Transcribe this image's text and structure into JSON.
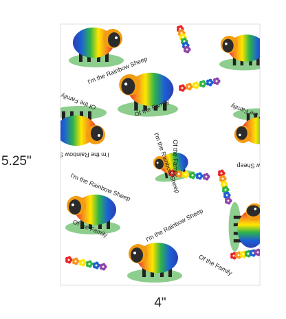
{
  "sheet": {
    "dimensions": {
      "height": "5.25\"",
      "width": "4\""
    },
    "prints": [
      {
        "text": "I'm the Rainbow Sheep"
      },
      {
        "text": "Of the Family"
      },
      {
        "text": "Of the Family"
      },
      {
        "text": "I'm the Rainbow Sh"
      },
      {
        "text": "I'm the Rainbow Sheep"
      },
      {
        "text": "Of the Family"
      },
      {
        "text": "w Sheep"
      },
      {
        "text": "Of the Family"
      },
      {
        "text": "I'm the Rainbow Sheep"
      },
      {
        "text": "Of the Family"
      },
      {
        "text": "I'm the Rainbow Sheep"
      },
      {
        "text": "Of the Family"
      }
    ]
  }
}
